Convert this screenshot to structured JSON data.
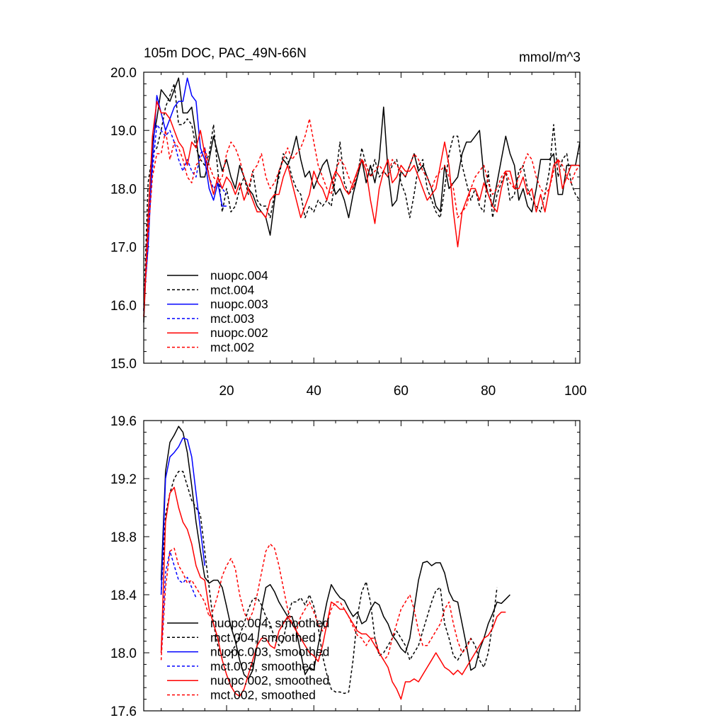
{
  "colors": {
    "black": "#000000",
    "blue": "#0000ff",
    "red": "#ff0000"
  },
  "chart_data": [
    {
      "type": "line",
      "title": "105m DOC, PAC_49N-66N",
      "units": "mmol/m^3",
      "xlim": [
        1,
        101
      ],
      "ylim": [
        15.0,
        20.0
      ],
      "xticks": [
        20,
        40,
        60,
        80,
        100
      ],
      "xtick_labels": [
        "20",
        "40",
        "60",
        "80",
        "100"
      ],
      "yticks": [
        15.0,
        16.0,
        17.0,
        18.0,
        19.0,
        20.0
      ],
      "ytick_labels": [
        "15.0",
        "16.0",
        "17.0",
        "18.0",
        "19.0",
        "20.0"
      ],
      "legend_position": "lower-left",
      "series": [
        {
          "name": "nuopc.004",
          "color": "#000000",
          "dash": "solid",
          "start": 1,
          "values": [
            15.7,
            17.5,
            18.8,
            19.2,
            19.7,
            19.6,
            19.5,
            19.7,
            19.9,
            19.3,
            19.3,
            19.4,
            18.9,
            18.2,
            18.2,
            18.5,
            18.9,
            18.6,
            18.3,
            18.5,
            18.2,
            18.0,
            18.4,
            18.2,
            18.0,
            17.9,
            17.7,
            17.6,
            17.5,
            17.2,
            17.8,
            18.3,
            18.5,
            18.4,
            18.6,
            18.9,
            18.5,
            18.2,
            18.3,
            18.0,
            18.2,
            18.4,
            18.5,
            18.2,
            17.9,
            18.0,
            17.8,
            17.5,
            17.9,
            18.2,
            18.5,
            18.1,
            18.4,
            18.1,
            18.5,
            19.4,
            18.3,
            17.7,
            17.8,
            18.3,
            18.2,
            18.4,
            18.6,
            18.3,
            18.4,
            18.2,
            18.0,
            17.7,
            17.6,
            18.4,
            18.0,
            18.1,
            18.2,
            18.6,
            18.8,
            18.8,
            18.9,
            19.0,
            18.2,
            17.9,
            17.7,
            18.1,
            18.5,
            18.9,
            18.6,
            18.4,
            17.8,
            18.0,
            17.7,
            17.6,
            18.0,
            18.5,
            18.5,
            18.5,
            18.6,
            17.9,
            17.9,
            18.4,
            18.4,
            18.4,
            18.8
          ]
        },
        {
          "name": "mct.004",
          "color": "#000000",
          "dash": "dashed",
          "start": 1,
          "values": [
            15.9,
            18.1,
            18.6,
            18.7,
            19.0,
            19.4,
            19.6,
            19.8,
            19.1,
            19.1,
            19.2,
            19.1,
            18.7,
            18.5,
            18.4,
            18.6,
            19.1,
            18.3,
            17.6,
            18.0,
            17.6,
            17.7,
            18.0,
            18.2,
            17.9,
            18.3,
            17.8,
            17.7,
            17.7,
            17.5,
            17.9,
            18.2,
            18.6,
            18.5,
            18.2,
            18.0,
            17.9,
            17.5,
            17.7,
            17.6,
            17.8,
            17.7,
            17.8,
            17.7,
            18.2,
            18.8,
            18.1,
            17.9,
            18.0,
            18.2,
            18.7,
            18.4,
            18.2,
            18.5,
            18.2,
            18.3,
            18.2,
            18.4,
            18.5,
            18.1,
            17.9,
            17.5,
            17.9,
            18.4,
            18.5,
            18.0,
            17.8,
            17.6,
            17.5,
            18.0,
            18.6,
            18.9,
            18.9,
            18.4,
            18.1,
            17.8,
            18.0,
            17.7,
            17.6,
            18.3,
            17.5,
            17.9,
            18.1,
            18.3,
            17.8,
            17.9,
            18.3,
            18.4,
            18.0,
            17.8,
            17.7,
            17.6,
            17.9,
            18.3,
            19.1,
            18.2,
            18.5,
            18.6,
            18.1,
            17.9,
            17.8
          ]
        },
        {
          "name": "nuopc.003",
          "color": "#0000ff",
          "dash": "solid",
          "start": 1,
          "values": [
            16.0,
            17.0,
            18.5,
            19.6,
            19.3,
            19.0,
            19.2,
            19.4,
            19.5,
            19.5,
            19.9,
            19.6,
            19.5,
            18.7,
            18.5,
            18.0,
            17.8,
            18.1,
            17.7,
            17.7
          ]
        },
        {
          "name": "mct.003",
          "color": "#0000ff",
          "dash": "dashed",
          "start": 1,
          "values": [
            15.9,
            17.4,
            18.3,
            19.1,
            19.0,
            18.9,
            19.0,
            18.8,
            18.5,
            18.3,
            18.5,
            18.3,
            18.2,
            18.6,
            18.7,
            18.2,
            18.0,
            18.1,
            18.0,
            17.9
          ]
        },
        {
          "name": "nuopc.002",
          "color": "#ff0000",
          "dash": "solid",
          "start": 1,
          "values": [
            15.8,
            17.5,
            18.9,
            19.5,
            19.3,
            19.3,
            19.2,
            19.0,
            18.8,
            18.7,
            18.4,
            18.8,
            18.7,
            19.0,
            18.6,
            18.2,
            17.9,
            18.2,
            18.0,
            18.2,
            18.1,
            17.9,
            18.1,
            17.8,
            18.0,
            17.8,
            17.6,
            17.6,
            17.5,
            17.8,
            17.9,
            17.9,
            18.2,
            18.4,
            18.1,
            17.8,
            17.5,
            17.7,
            17.9,
            18.3,
            18.1,
            18.0,
            17.8,
            18.1,
            18.3,
            18.2,
            18.0,
            17.9,
            18.1,
            18.3,
            18.5,
            18.3,
            17.8,
            17.4,
            18.0,
            18.3,
            18.5,
            18.1,
            18.2,
            18.4,
            18.3,
            18.3,
            18.4,
            18.2,
            18.0,
            17.8,
            17.9,
            18.0,
            18.4,
            18.8,
            18.4,
            17.6,
            17.0,
            17.6,
            17.8,
            18.0,
            18.0,
            17.8,
            18.1,
            17.9,
            17.7,
            17.6,
            18.0,
            18.3,
            18.3,
            18.0,
            18.0,
            18.2,
            17.9,
            18.0,
            17.6,
            17.9,
            17.6,
            18.0,
            18.4,
            18.5,
            18.0,
            18.2,
            18.4,
            18.4,
            18.4
          ]
        },
        {
          "name": "mct.002",
          "color": "#ff0000",
          "dash": "dashed",
          "start": 1,
          "values": [
            15.8,
            17.2,
            18.2,
            18.6,
            18.6,
            19.0,
            18.5,
            18.8,
            18.7,
            18.5,
            18.2,
            18.1,
            18.4,
            18.5,
            18.7,
            18.4,
            18.2,
            18.1,
            18.2,
            18.6,
            18.8,
            18.7,
            18.5,
            18.2,
            18.0,
            18.3,
            18.4,
            18.6,
            18.2,
            18.0,
            18.1,
            18.3,
            18.5,
            18.7,
            18.5,
            18.6,
            18.7,
            18.9,
            19.2,
            18.8,
            18.4,
            18.2,
            18.0,
            17.9,
            18.3,
            18.5,
            18.4,
            18.2,
            18.0,
            18.3,
            18.5,
            18.4,
            18.2,
            18.3,
            18.4,
            18.3,
            18.2,
            18.5,
            18.4,
            18.3,
            18.2,
            18.4,
            18.6,
            18.5,
            18.3,
            18.2,
            18.0,
            18.2,
            18.3,
            18.4,
            18.2,
            18.0,
            17.5,
            17.6,
            17.7,
            18.0,
            18.2,
            18.3,
            18.4,
            18.1,
            17.9,
            18.0,
            18.2,
            18.3,
            18.1,
            18.0,
            18.2,
            18.4,
            18.6,
            18.5,
            18.2,
            18.0,
            17.9,
            18.0,
            18.3,
            18.5,
            18.4,
            18.2,
            18.1,
            18.3,
            18.4
          ]
        }
      ]
    },
    {
      "type": "line",
      "title": "",
      "xlim": [
        1,
        101
      ],
      "ylim": [
        17.6,
        19.6
      ],
      "yticks": [
        17.6,
        18.0,
        18.4,
        18.8,
        19.2,
        19.6
      ],
      "ytick_labels": [
        "17.6",
        "18.0",
        "18.4",
        "18.8",
        "19.2",
        "19.6"
      ],
      "legend_position": "lower-left",
      "series": [
        {
          "name": "nuopc.004, smoothed",
          "color": "#000000",
          "dash": "solid",
          "start": 5,
          "values": [
            18.5,
            19.25,
            19.45,
            19.5,
            19.56,
            19.52,
            19.38,
            19.15,
            18.9,
            18.7,
            18.52,
            18.48,
            18.5,
            18.5,
            18.45,
            18.32,
            18.18,
            18.08,
            17.95,
            17.85,
            17.82,
            17.88,
            18.05,
            18.3,
            18.45,
            18.47,
            18.42,
            18.35,
            18.3,
            18.25,
            18.25,
            18.15,
            18.0,
            17.85,
            17.9,
            17.88,
            18.05,
            18.2,
            18.35,
            18.47,
            18.42,
            18.38,
            18.36,
            18.3,
            18.25,
            18.28,
            18.2,
            18.22,
            18.3,
            18.35,
            18.33,
            18.25,
            18.2,
            18.12,
            18.08,
            18.03,
            18.0,
            18.1,
            18.3,
            18.5,
            18.62,
            18.63,
            18.6,
            18.62,
            18.62,
            18.55,
            18.42,
            18.36,
            18.35,
            18.2,
            18.05,
            17.88,
            17.9,
            18.02,
            18.1,
            18.2,
            18.27,
            18.35,
            18.34,
            18.37,
            18.4
          ]
        },
        {
          "name": "mct.004, smoothed",
          "color": "#000000",
          "dash": "dashed",
          "start": 5,
          "values": [
            18.4,
            18.95,
            19.1,
            19.2,
            19.25,
            19.25,
            19.15,
            19.05,
            19.0,
            18.95,
            18.7,
            18.45,
            18.2,
            18.05,
            17.97,
            17.97,
            18.0,
            18.05,
            18.12,
            18.2,
            18.3,
            18.37,
            18.38,
            18.33,
            18.25,
            18.2,
            18.1,
            18.05,
            18.08,
            18.25,
            18.35,
            18.35,
            18.38,
            18.33,
            18.4,
            18.32,
            18.18,
            17.98,
            17.85,
            17.75,
            17.73,
            17.73,
            17.72,
            17.73,
            17.95,
            18.25,
            18.42,
            18.49,
            18.35,
            18.1,
            17.98,
            18.0,
            18.05,
            18.1,
            18.15,
            18.1,
            18.05,
            17.95,
            18.0,
            18.05,
            18.15,
            18.25,
            18.35,
            18.43,
            18.45,
            18.2,
            18.1,
            17.98,
            17.95,
            18.0,
            18.05,
            18.1,
            18.05,
            17.95,
            17.9,
            18.0,
            18.2,
            18.45
          ]
        },
        {
          "name": "nuopc.003, smoothed",
          "color": "#0000ff",
          "dash": "solid",
          "start": 5,
          "values": [
            18.4,
            19.2,
            19.35,
            19.38,
            19.42,
            19.48,
            19.47,
            19.35,
            19.1,
            18.85,
            18.6
          ]
        },
        {
          "name": "mct.003, smoothed",
          "color": "#0000ff",
          "dash": "dashed",
          "start": 5,
          "values": [
            18.0,
            18.55,
            18.7,
            18.6,
            18.5,
            18.48,
            18.52,
            18.45,
            18.38
          ]
        },
        {
          "name": "nuopc.002, smoothed",
          "color": "#ff0000",
          "dash": "solid",
          "start": 5,
          "values": [
            18.0,
            18.9,
            19.1,
            19.14,
            19.0,
            18.9,
            18.85,
            18.75,
            18.6,
            18.52,
            18.5,
            18.3,
            18.2,
            18.1,
            17.95,
            17.85,
            17.77,
            17.72,
            17.7,
            17.75,
            17.85,
            17.95,
            18.05,
            18.1,
            18.1,
            18.05,
            18.03,
            18.15,
            18.2,
            18.25,
            18.2,
            18.15,
            18.1,
            18.05,
            18.0,
            17.98,
            17.94,
            18.05,
            18.2,
            18.35,
            18.33,
            18.3,
            18.3,
            18.25,
            18.2,
            18.15,
            18.13,
            18.13,
            18.1,
            18.05,
            18.0,
            17.95,
            17.9,
            17.8,
            17.75,
            17.68,
            17.8,
            17.8,
            17.82,
            17.8,
            17.85,
            17.9,
            17.95,
            18.0,
            17.95,
            17.9,
            17.88,
            17.85,
            17.88,
            17.85,
            17.9,
            17.95,
            18.0,
            18.05,
            18.1,
            18.12,
            18.17,
            18.25,
            18.28,
            18.28
          ]
        },
        {
          "name": "mct.002, smoothed",
          "color": "#ff0000",
          "dash": "dashed",
          "start": 5,
          "values": [
            17.95,
            18.45,
            18.7,
            18.72,
            18.6,
            18.55,
            18.48,
            18.5,
            18.45,
            18.4,
            18.35,
            18.25,
            18.3,
            18.4,
            18.53,
            18.6,
            18.65,
            18.58,
            18.4,
            18.28,
            18.22,
            18.28,
            18.4,
            18.55,
            18.7,
            18.75,
            18.72,
            18.6,
            18.45,
            18.3,
            18.2,
            18.15,
            18.25,
            18.3,
            18.35,
            18.28,
            18.2,
            18.15,
            18.2,
            18.3,
            18.35,
            18.35,
            18.3,
            18.25,
            18.18,
            18.12,
            18.1,
            18.05,
            18.1,
            18.1,
            18.0,
            17.95,
            17.98,
            18.1,
            18.2,
            18.3,
            18.35,
            18.4,
            18.3,
            18.15,
            18.05,
            18.05,
            18.1,
            18.15,
            18.2,
            18.3,
            18.35,
            18.2,
            18.08,
            18.0,
            18.03,
            18.1
          ]
        }
      ]
    }
  ]
}
